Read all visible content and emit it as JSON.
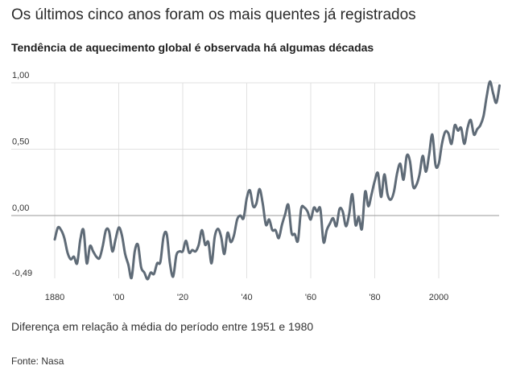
{
  "header": {
    "title": "Os últimos cinco anos foram os mais quentes já registrados",
    "subtitle": "Tendência de aquecimento global é observada há algumas décadas"
  },
  "footer": {
    "note": "Diferença em relação à média do período entre 1951 e 1980",
    "source": "Fonte: Nasa"
  },
  "colors": {
    "series": "#5f6b77",
    "grid": "#e1e1e1",
    "zero_line": "#9a9a9a"
  },
  "chart_data": {
    "type": "line",
    "title": "Tendência de aquecimento global é observada há algumas décadas",
    "xlabel": "",
    "ylabel": "",
    "xlim": [
      1880,
      2019
    ],
    "ylim": [
      -0.49,
      1.0
    ],
    "grid": "vertical and horizontal",
    "y_ticks": [
      {
        "value": 1.0,
        "label": "1,00"
      },
      {
        "value": 0.5,
        "label": "0,50"
      },
      {
        "value": 0.0,
        "label": "0,00"
      },
      {
        "value": -0.49,
        "label": "-0,49"
      }
    ],
    "x_ticks": [
      {
        "value": 1880,
        "label": "1880"
      },
      {
        "value": 1900,
        "label": "'00"
      },
      {
        "value": 1920,
        "label": "'20"
      },
      {
        "value": 1940,
        "label": "'40"
      },
      {
        "value": 1960,
        "label": "'60"
      },
      {
        "value": 1980,
        "label": "'80"
      },
      {
        "value": 2000,
        "label": "2000"
      }
    ],
    "series": [
      {
        "x": [
          1880,
          1881,
          1882,
          1883,
          1884,
          1885,
          1886,
          1887,
          1888,
          1889,
          1890,
          1891,
          1892,
          1893,
          1894,
          1895,
          1896,
          1897,
          1898,
          1899,
          1900,
          1901,
          1902,
          1903,
          1904,
          1905,
          1906,
          1907,
          1908,
          1909,
          1910,
          1911,
          1912,
          1913,
          1914,
          1915,
          1916,
          1917,
          1918,
          1919,
          1920,
          1921,
          1922,
          1923,
          1924,
          1925,
          1926,
          1927,
          1928,
          1929,
          1930,
          1931,
          1932,
          1933,
          1934,
          1935,
          1936,
          1937,
          1938,
          1939,
          1940,
          1941,
          1942,
          1943,
          1944,
          1945,
          1946,
          1947,
          1948,
          1949,
          1950,
          1951,
          1952,
          1953,
          1954,
          1955,
          1956,
          1957,
          1958,
          1959,
          1960,
          1961,
          1962,
          1963,
          1964,
          1965,
          1966,
          1967,
          1968,
          1969,
          1970,
          1971,
          1972,
          1973,
          1974,
          1975,
          1976,
          1977,
          1978,
          1979,
          1980,
          1981,
          1982,
          1983,
          1984,
          1985,
          1986,
          1987,
          1988,
          1989,
          1990,
          1991,
          1992,
          1993,
          1994,
          1995,
          1996,
          1997,
          1998,
          1999,
          2000,
          2001,
          2002,
          2003,
          2004,
          2005,
          2006,
          2007,
          2008,
          2009,
          2010,
          2011,
          2012,
          2013,
          2014,
          2015,
          2016,
          2017,
          2018,
          2019
        ],
        "values": [
          -0.18,
          -0.09,
          -0.11,
          -0.17,
          -0.28,
          -0.33,
          -0.31,
          -0.36,
          -0.18,
          -0.11,
          -0.36,
          -0.23,
          -0.27,
          -0.31,
          -0.32,
          -0.23,
          -0.11,
          -0.12,
          -0.27,
          -0.18,
          -0.09,
          -0.15,
          -0.29,
          -0.37,
          -0.47,
          -0.27,
          -0.22,
          -0.39,
          -0.43,
          -0.48,
          -0.43,
          -0.44,
          -0.36,
          -0.35,
          -0.16,
          -0.14,
          -0.36,
          -0.46,
          -0.3,
          -0.27,
          -0.27,
          -0.19,
          -0.28,
          -0.26,
          -0.27,
          -0.22,
          -0.11,
          -0.22,
          -0.2,
          -0.36,
          -0.16,
          -0.1,
          -0.16,
          -0.29,
          -0.13,
          -0.2,
          -0.15,
          -0.03,
          -0.0,
          -0.02,
          0.13,
          0.19,
          0.07,
          0.09,
          0.2,
          0.09,
          -0.07,
          -0.03,
          -0.11,
          -0.11,
          -0.17,
          -0.07,
          0.01,
          0.08,
          -0.13,
          -0.14,
          -0.19,
          0.05,
          0.06,
          0.03,
          -0.03,
          0.06,
          0.03,
          0.05,
          -0.2,
          -0.11,
          -0.06,
          -0.02,
          -0.08,
          0.05,
          0.03,
          -0.08,
          0.01,
          0.16,
          -0.07,
          -0.01,
          -0.1,
          0.18,
          0.07,
          0.16,
          0.26,
          0.32,
          0.14,
          0.31,
          0.16,
          0.12,
          0.18,
          0.32,
          0.39,
          0.27,
          0.45,
          0.41,
          0.22,
          0.23,
          0.31,
          0.45,
          0.33,
          0.46,
          0.61,
          0.38,
          0.39,
          0.54,
          0.63,
          0.62,
          0.54,
          0.68,
          0.64,
          0.66,
          0.54,
          0.66,
          0.72,
          0.61,
          0.65,
          0.68,
          0.75,
          0.9,
          1.01,
          0.92,
          0.85,
          0.98
        ]
      }
    ]
  }
}
